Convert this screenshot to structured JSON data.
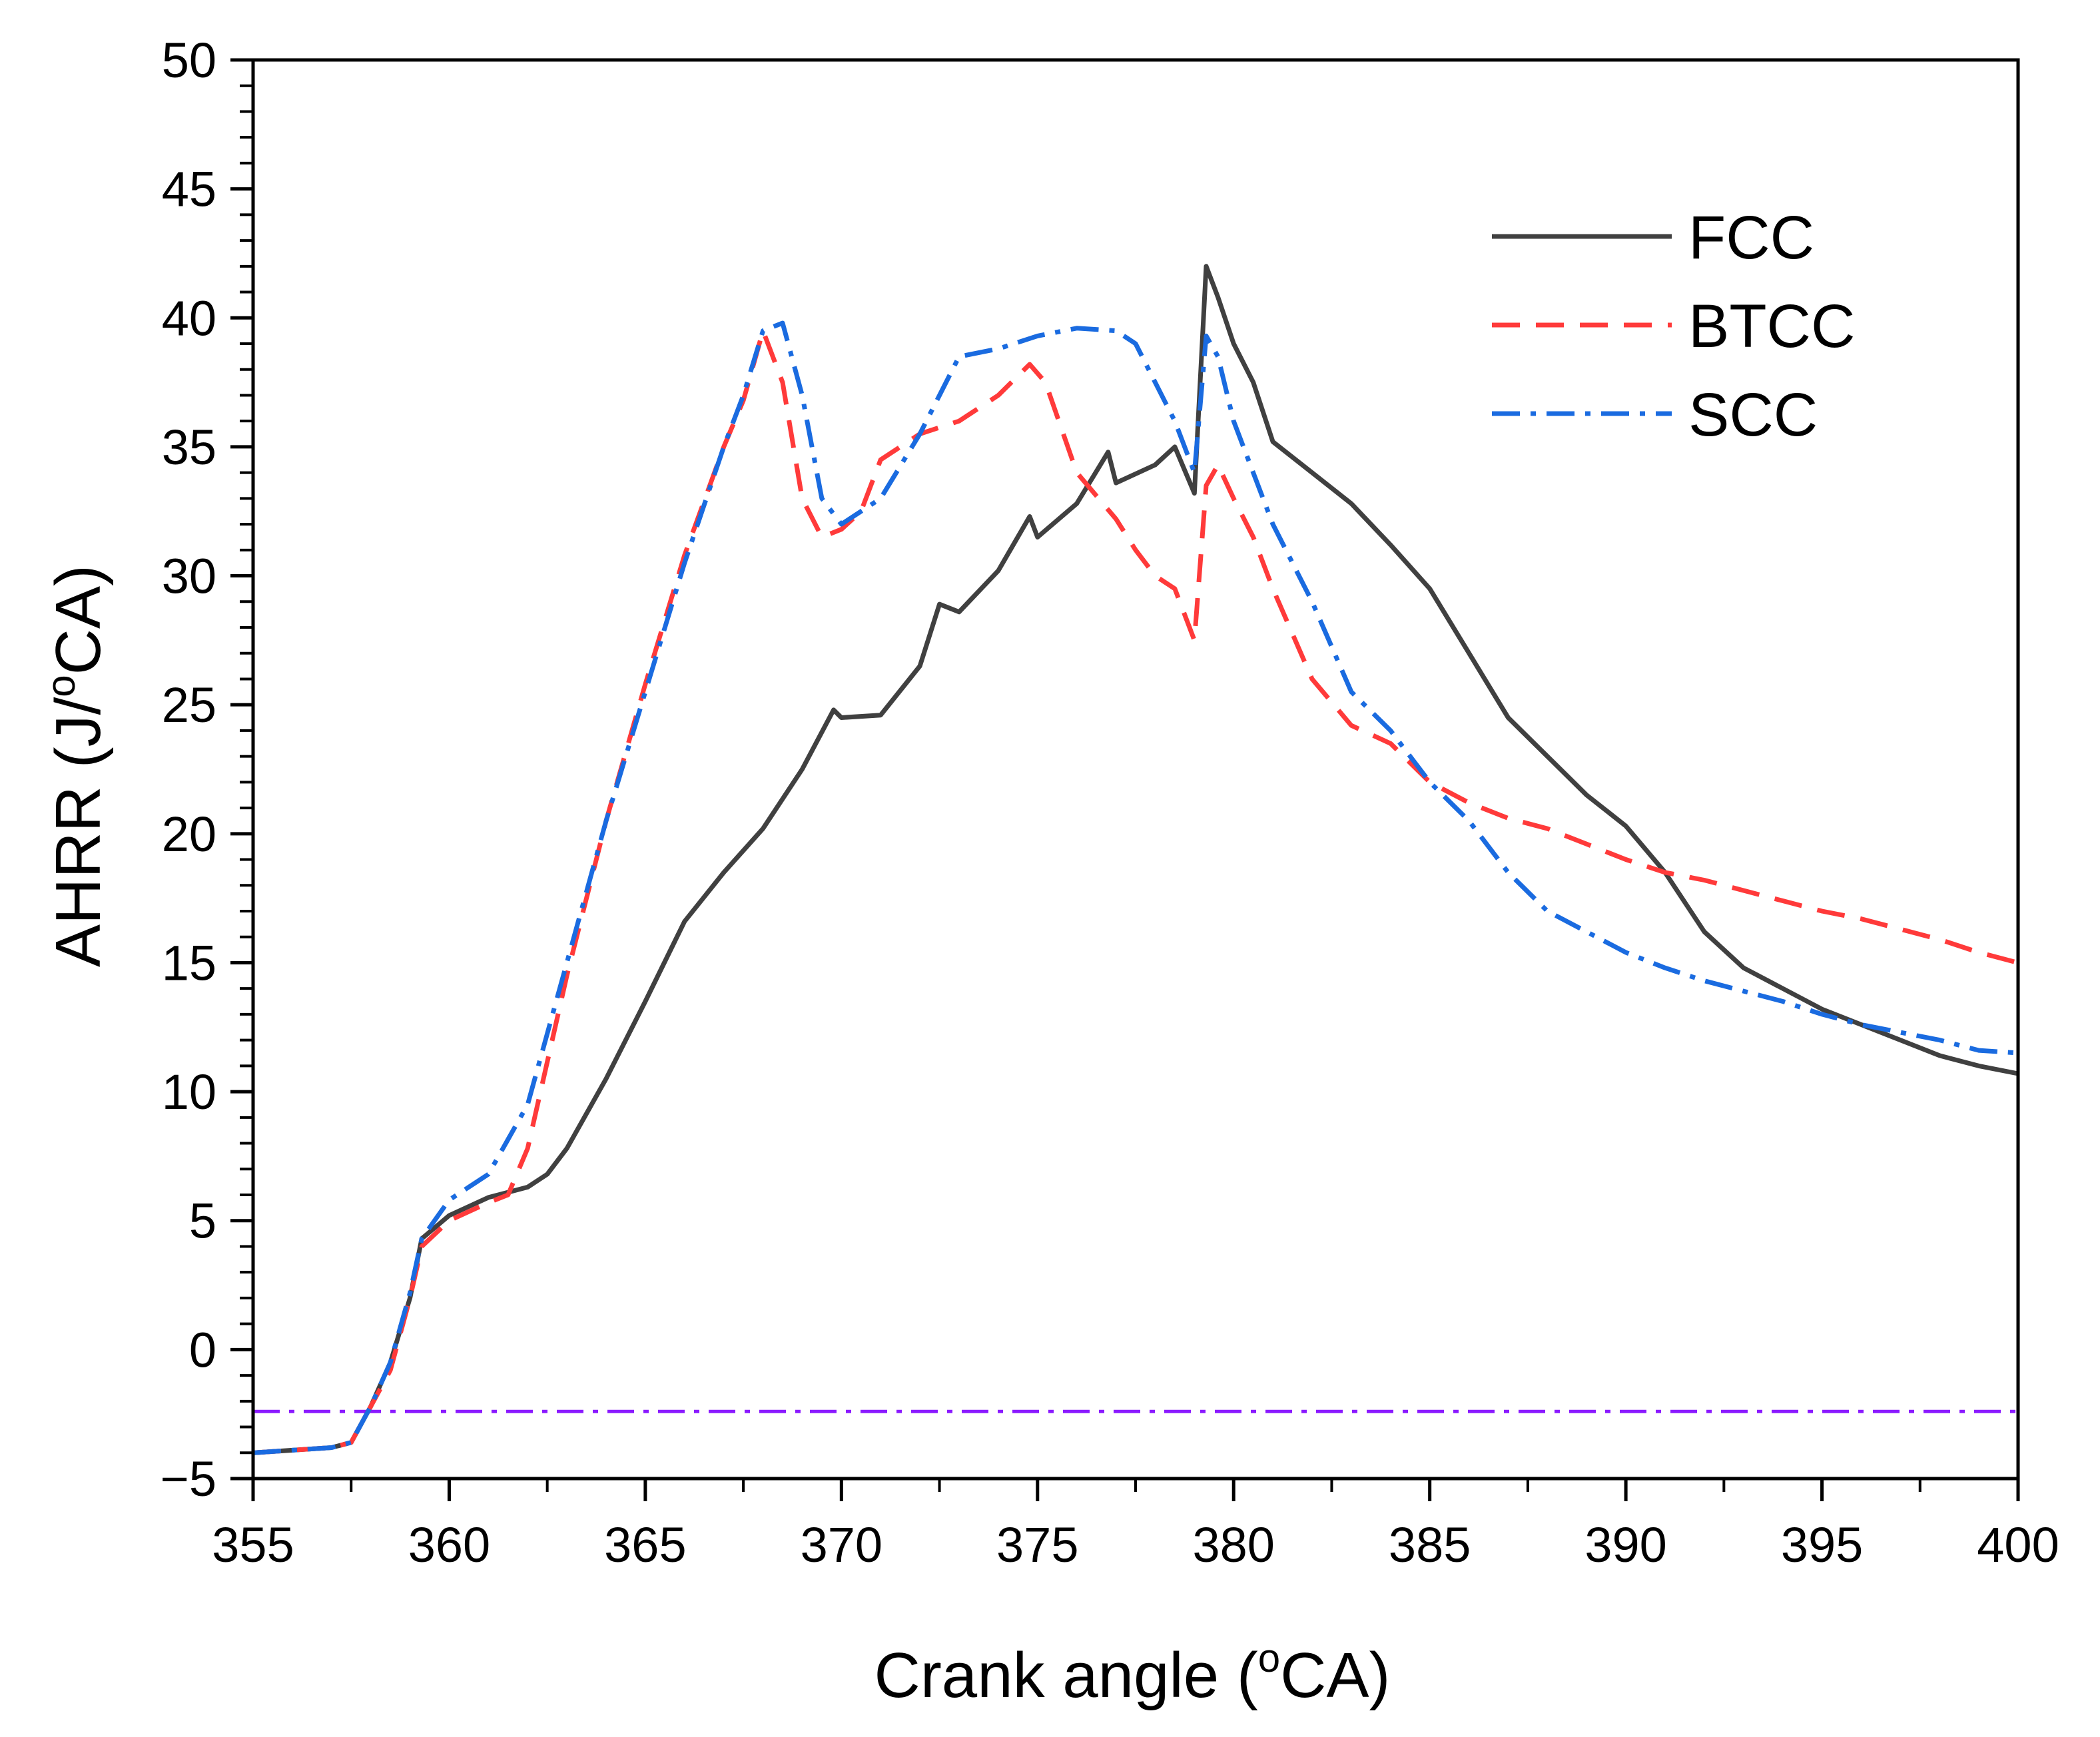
{
  "chart_data": {
    "type": "line",
    "xlabel": "Crank angle (",
    "xlabel_sup": "o",
    "xlabel_end": "CA)",
    "ylabel": "AHRR (J/",
    "ylabel_sup": "o",
    "ylabel_end": "CA)",
    "xlim": [
      355,
      400
    ],
    "ylim": [
      -5,
      50
    ],
    "xticks": [
      355,
      360,
      365,
      370,
      375,
      380,
      385,
      390,
      395,
      400
    ],
    "yticks": [
      -5,
      0,
      5,
      10,
      15,
      20,
      25,
      30,
      35,
      40,
      45,
      50
    ],
    "ytick_labels": [
      "−5",
      "0",
      "5",
      "10",
      "15",
      "20",
      "25",
      "30",
      "35",
      "40",
      "45",
      "50"
    ],
    "grid": false,
    "legend_position": "top-right",
    "reference_line": {
      "y": -2.4,
      "color": "#8b1aff",
      "style": "dash-dot"
    },
    "series": [
      {
        "name": "FCC",
        "color": "#404040",
        "style": "solid",
        "x": [
          355,
          356,
          357,
          357.5,
          358,
          358.5,
          359,
          359.3,
          360,
          361,
          362,
          362.5,
          363,
          364,
          365,
          366,
          367,
          368,
          369,
          369.8,
          370,
          371,
          372,
          372.5,
          373,
          374,
          374.8,
          375,
          376,
          376.8,
          377,
          378,
          378.5,
          379,
          379.3,
          379.6,
          380,
          380.5,
          381,
          382,
          383,
          384,
          385,
          386,
          387,
          388,
          389,
          390,
          391,
          392,
          393,
          394,
          395,
          396,
          397,
          398,
          399,
          400
        ],
        "y": [
          -4.0,
          -3.9,
          -3.8,
          -3.6,
          -2.2,
          -0.5,
          2.0,
          4.3,
          5.2,
          5.9,
          6.3,
          6.8,
          7.8,
          10.5,
          13.5,
          16.6,
          18.5,
          20.2,
          22.5,
          24.8,
          24.5,
          24.6,
          26.5,
          28.9,
          28.6,
          30.2,
          32.3,
          31.5,
          32.8,
          34.8,
          33.6,
          34.3,
          35.0,
          33.2,
          42.0,
          40.8,
          39.0,
          37.5,
          35.2,
          34.0,
          32.8,
          31.2,
          29.5,
          27.0,
          24.5,
          23.0,
          21.5,
          20.3,
          18.5,
          16.2,
          14.8,
          14.0,
          13.2,
          12.6,
          12.0,
          11.4,
          11.0,
          10.7
        ]
      },
      {
        "name": "BTCC",
        "color": "#ff3a3a",
        "style": "dashed",
        "x": [
          355,
          356,
          357,
          357.5,
          358,
          358.5,
          359,
          359.3,
          360,
          361,
          361.5,
          362,
          363,
          364,
          365,
          366,
          367,
          367.5,
          368,
          368.5,
          369,
          369.5,
          370,
          370.5,
          371,
          372,
          373,
          374,
          374.8,
          375.2,
          376,
          377,
          377.5,
          378,
          378.5,
          379,
          379.3,
          379.6,
          380,
          380.5,
          381,
          382,
          383,
          384,
          385,
          386,
          387,
          388,
          389,
          390,
          391,
          392,
          393,
          394,
          395,
          396,
          397,
          398,
          399,
          400
        ],
        "y": [
          -4.0,
          -3.9,
          -3.8,
          -3.6,
          -2.2,
          -0.8,
          2.0,
          4.0,
          5.0,
          5.7,
          6.0,
          7.8,
          14.5,
          20.5,
          25.8,
          30.8,
          35.0,
          36.8,
          39.5,
          37.5,
          33.0,
          31.5,
          31.8,
          32.5,
          34.5,
          35.5,
          36.0,
          37.0,
          38.2,
          37.5,
          34.0,
          32.2,
          31.0,
          30.0,
          29.5,
          27.5,
          33.5,
          34.3,
          33.0,
          31.5,
          29.5,
          26.0,
          24.2,
          23.5,
          22.0,
          21.2,
          20.6,
          20.2,
          19.6,
          19.0,
          18.5,
          18.2,
          17.8,
          17.4,
          17.0,
          16.7,
          16.3,
          15.9,
          15.4,
          15.0
        ]
      },
      {
        "name": "SCC",
        "color": "#1a6be0",
        "style": "dash-dot",
        "x": [
          355,
          356,
          357,
          357.5,
          358,
          358.5,
          359,
          359.3,
          360,
          361,
          362,
          363,
          364,
          365,
          366,
          367,
          367.5,
          368,
          368.5,
          369,
          369.5,
          370,
          371,
          372,
          372.5,
          373,
          374,
          375,
          376,
          377,
          377.5,
          378,
          378.5,
          379,
          379.3,
          379.6,
          380,
          381,
          382,
          383,
          384,
          385,
          386,
          387,
          388,
          389,
          390,
          391,
          392,
          393,
          394,
          395,
          396,
          397,
          398,
          399,
          400
        ],
        "y": [
          -4.0,
          -3.9,
          -3.8,
          -3.6,
          -2.2,
          -0.5,
          2.2,
          4.3,
          5.8,
          6.8,
          9.5,
          15.0,
          20.5,
          25.5,
          30.5,
          35.0,
          37.0,
          39.5,
          39.8,
          37.0,
          33.0,
          32.0,
          33.0,
          35.5,
          37.0,
          38.5,
          38.8,
          39.3,
          39.6,
          39.5,
          39.0,
          37.5,
          36.0,
          34.0,
          39.3,
          38.5,
          36.0,
          32.0,
          29.0,
          25.5,
          24.0,
          22.0,
          20.5,
          18.5,
          17.0,
          16.2,
          15.4,
          14.8,
          14.3,
          13.9,
          13.5,
          13.0,
          12.6,
          12.3,
          12.0,
          11.6,
          11.5
        ]
      }
    ]
  }
}
